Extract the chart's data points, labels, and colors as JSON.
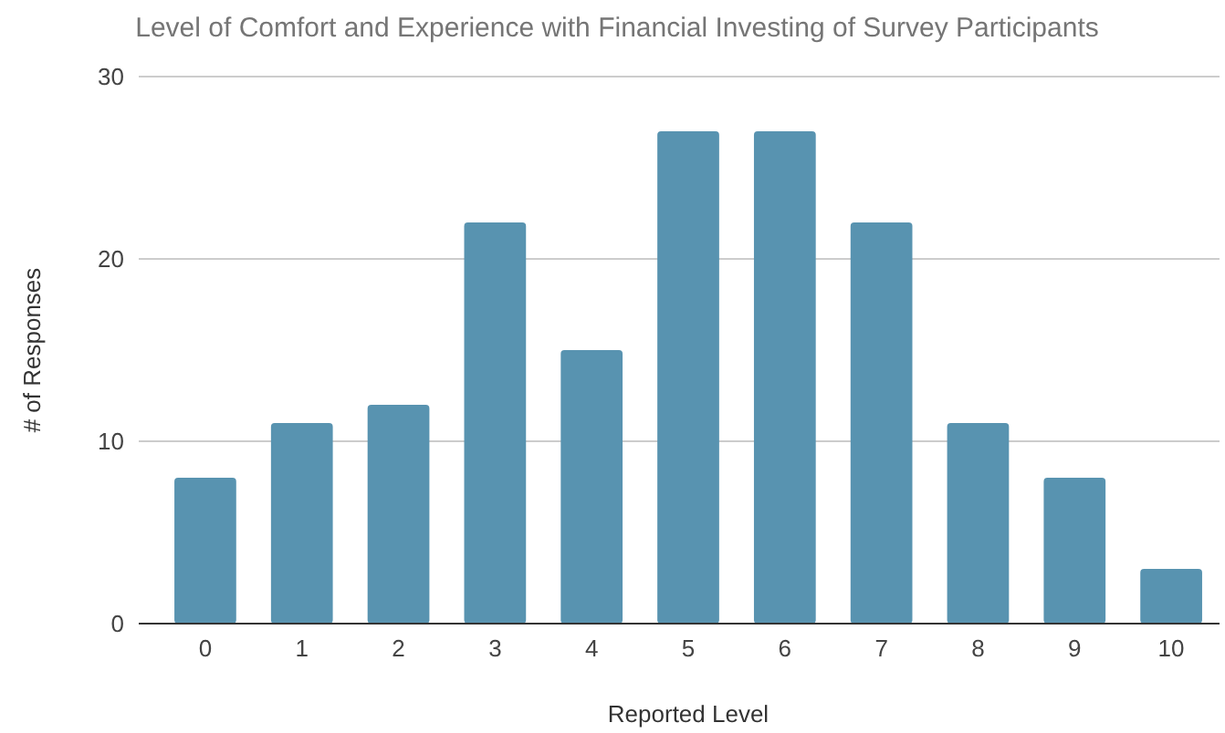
{
  "chart_data": {
    "type": "bar",
    "title": "Level of Comfort and Experience with Financial Investing of Survey Participants",
    "xlabel": "Reported Level",
    "ylabel": "# of Responses",
    "categories": [
      "0",
      "1",
      "2",
      "3",
      "4",
      "5",
      "6",
      "7",
      "8",
      "9",
      "10"
    ],
    "values": [
      8,
      11,
      12,
      22,
      15,
      27,
      27,
      22,
      11,
      8,
      3
    ],
    "color": "#5893b0",
    "ylim": [
      0,
      30
    ],
    "yticks": [
      0,
      10,
      20,
      30
    ],
    "grid": "y"
  }
}
